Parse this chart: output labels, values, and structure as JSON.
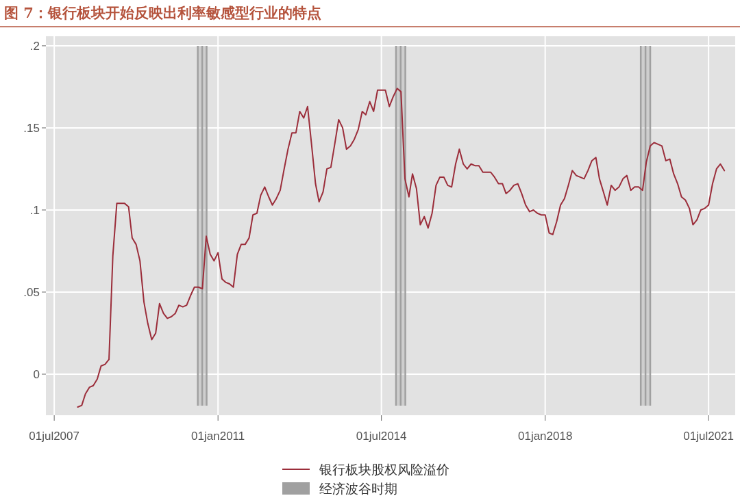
{
  "chart_data": {
    "type": "line",
    "title": "图 7：银行板块开始反映出利率敏感型行业的特点",
    "x": [
      "2008-01",
      "2008-02",
      "2008-03",
      "2008-04",
      "2008-05",
      "2008-06",
      "2008-07",
      "2008-08",
      "2008-09",
      "2008-10",
      "2008-11",
      "2008-12",
      "2009-01",
      "2009-02",
      "2009-03",
      "2009-04",
      "2009-05",
      "2009-06",
      "2009-07",
      "2009-08",
      "2009-09",
      "2009-10",
      "2009-11",
      "2009-12",
      "2010-01",
      "2010-02",
      "2010-03",
      "2010-04",
      "2010-05",
      "2010-06",
      "2010-07",
      "2010-08",
      "2010-09",
      "2010-10",
      "2010-11",
      "2010-12",
      "2011-01",
      "2011-02",
      "2011-03",
      "2011-04",
      "2011-05",
      "2011-06",
      "2011-07",
      "2011-08",
      "2011-09",
      "2011-10",
      "2011-11",
      "2011-12",
      "2012-01",
      "2012-02",
      "2012-03",
      "2012-04",
      "2012-05",
      "2012-06",
      "2012-07",
      "2012-08",
      "2012-09",
      "2012-10",
      "2012-11",
      "2012-12",
      "2013-01",
      "2013-02",
      "2013-03",
      "2013-04",
      "2013-05",
      "2013-06",
      "2013-07",
      "2013-08",
      "2013-09",
      "2013-10",
      "2013-11",
      "2013-12",
      "2014-01",
      "2014-02",
      "2014-03",
      "2014-04",
      "2014-05",
      "2014-06",
      "2014-07",
      "2014-08",
      "2014-09",
      "2014-10",
      "2014-11",
      "2014-12",
      "2015-01",
      "2015-02",
      "2015-03",
      "2015-04",
      "2015-05",
      "2015-06",
      "2015-07",
      "2015-08",
      "2015-09",
      "2015-10",
      "2015-11",
      "2015-12",
      "2016-01",
      "2016-02",
      "2016-03",
      "2016-04",
      "2016-05",
      "2016-06",
      "2016-07",
      "2016-08",
      "2016-09",
      "2016-10",
      "2016-11",
      "2016-12",
      "2017-01",
      "2017-02",
      "2017-03",
      "2017-04",
      "2017-05",
      "2017-06",
      "2017-07",
      "2017-08",
      "2017-09",
      "2017-10",
      "2017-11",
      "2017-12",
      "2018-01",
      "2018-02",
      "2018-03",
      "2018-04",
      "2018-05",
      "2018-06",
      "2018-07",
      "2018-08",
      "2018-09",
      "2018-10",
      "2018-11",
      "2018-12",
      "2019-01",
      "2019-02",
      "2019-03",
      "2019-04",
      "2019-05",
      "2019-06",
      "2019-07",
      "2019-08",
      "2019-09",
      "2019-10",
      "2019-11",
      "2019-12",
      "2020-01",
      "2020-02",
      "2020-03",
      "2020-04",
      "2020-05",
      "2020-06",
      "2020-07",
      "2020-08",
      "2020-09",
      "2020-10",
      "2020-11",
      "2020-12",
      "2021-01",
      "2021-02",
      "2021-03",
      "2021-04",
      "2021-05",
      "2021-06",
      "2021-07",
      "2021-08",
      "2021-09",
      "2021-10",
      "2021-11"
    ],
    "series": [
      {
        "name": "银行板块股权风险溢价",
        "color": "#9b2d3a",
        "values": [
          -0.02,
          -0.019,
          -0.012,
          -0.008,
          -0.007,
          -0.003,
          0.005,
          0.006,
          0.009,
          0.072,
          0.104,
          0.104,
          0.104,
          0.102,
          0.083,
          0.079,
          0.069,
          0.044,
          0.031,
          0.021,
          0.025,
          0.043,
          0.037,
          0.034,
          0.035,
          0.037,
          0.042,
          0.041,
          0.042,
          0.048,
          0.053,
          0.053,
          0.052,
          0.084,
          0.073,
          0.069,
          0.074,
          0.058,
          0.056,
          0.055,
          0.053,
          0.073,
          0.079,
          0.079,
          0.083,
          0.097,
          0.098,
          0.109,
          0.114,
          0.108,
          0.103,
          0.107,
          0.112,
          0.125,
          0.137,
          0.147,
          0.147,
          0.16,
          0.156,
          0.163,
          0.14,
          0.116,
          0.105,
          0.111,
          0.125,
          0.126,
          0.14,
          0.155,
          0.15,
          0.137,
          0.139,
          0.143,
          0.149,
          0.16,
          0.158,
          0.166,
          0.16,
          0.173,
          0.173,
          0.173,
          0.163,
          0.169,
          0.174,
          0.172,
          0.119,
          0.108,
          0.122,
          0.113,
          0.091,
          0.096,
          0.089,
          0.098,
          0.115,
          0.12,
          0.12,
          0.115,
          0.114,
          0.128,
          0.137,
          0.128,
          0.125,
          0.128,
          0.127,
          0.127,
          0.123,
          0.123,
          0.123,
          0.12,
          0.116,
          0.116,
          0.11,
          0.112,
          0.115,
          0.116,
          0.11,
          0.103,
          0.099,
          0.1,
          0.098,
          0.097,
          0.097,
          0.086,
          0.085,
          0.093,
          0.103,
          0.107,
          0.115,
          0.124,
          0.121,
          0.12,
          0.119,
          0.124,
          0.13,
          0.132,
          0.119,
          0.111,
          0.103,
          0.115,
          0.112,
          0.114,
          0.119,
          0.121,
          0.112,
          0.114,
          0.114,
          0.112,
          0.129,
          0.139,
          0.141,
          0.14,
          0.139,
          0.13,
          0.131,
          0.122,
          0.116,
          0.108,
          0.106,
          0.101,
          0.091,
          0.094,
          0.1,
          0.101,
          0.103,
          0.116,
          0.125,
          0.128,
          0.124
        ]
      }
    ],
    "xlim": [
      "2007-04-27",
      "2022-01-25"
    ],
    "xticks": [
      {
        "value": "2007-07-01",
        "label": "01jul2007"
      },
      {
        "value": "2011-01-01",
        "label": "01jan2011"
      },
      {
        "value": "2014-07-01",
        "label": "01jul2014"
      },
      {
        "value": "2018-01-01",
        "label": "01jan2018"
      },
      {
        "value": "2021-07-01",
        "label": "01jul2021"
      }
    ],
    "ylim": [
      -0.025,
      0.2058
    ],
    "yticks": [
      {
        "value": 0,
        "label": "0"
      },
      {
        "value": 0.05,
        "label": ".05"
      },
      {
        "value": 0.1,
        "label": ".1"
      },
      {
        "value": 0.15,
        "label": ".15"
      },
      {
        "value": 0.2,
        "label": ".2"
      }
    ],
    "grid": true,
    "legend": "bottom",
    "bands": [
      {
        "axis": "x",
        "from": "2010-07-27",
        "to": "2010-10-04",
        "label": "经济波谷时期",
        "color": "#a0a0a0"
      },
      {
        "axis": "x",
        "from": "2014-10-23",
        "to": "2015-01-04",
        "color": "#a0a0a0"
      },
      {
        "axis": "x",
        "from": "2020-01-18",
        "to": "2020-04-01",
        "color": "#a0a0a0"
      }
    ]
  }
}
